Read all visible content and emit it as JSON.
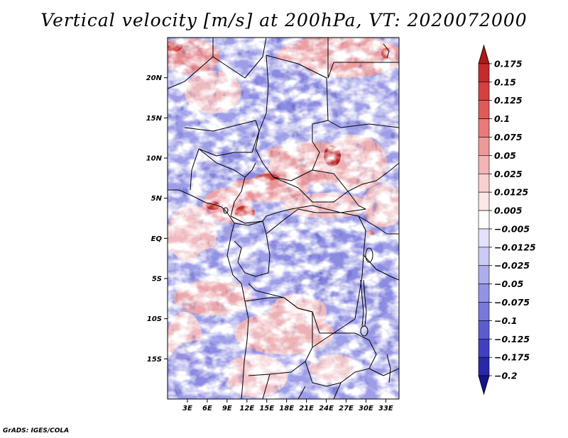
{
  "title": "Vertical velocity [m/s] at 200hPa, VT: 2020072000",
  "footer": "GrADS: IGES/COLA",
  "map": {
    "lat_range": [
      -20,
      25
    ],
    "lon_range": [
      0,
      35
    ],
    "lat_ticks": [
      "20N",
      "15N",
      "10N",
      "5N",
      "EQ",
      "5S",
      "10S",
      "15S"
    ],
    "lon_ticks": [
      "3E",
      "6E",
      "9E",
      "12E",
      "15E",
      "18E",
      "21E",
      "24E",
      "27E",
      "30E",
      "33E"
    ]
  },
  "colorbar": {
    "levels": [
      "0.175",
      "0.15",
      "0.125",
      "0.1",
      "0.075",
      "0.05",
      "0.025",
      "0.0125",
      "0.005",
      "-0.005",
      "-0.0125",
      "-0.025",
      "-0.05",
      "-0.075",
      "-0.1",
      "-0.125",
      "-0.175",
      "-0.2"
    ],
    "colors": [
      "#b01818",
      "#c62a2a",
      "#d54040",
      "#e05a5a",
      "#e87a7a",
      "#ef9898",
      "#f4b4b4",
      "#f9d0d0",
      "#fce6e6",
      "#ffffff",
      "#e2e2fb",
      "#cacaf4",
      "#adadee",
      "#9292e6",
      "#7878dc",
      "#5c5cd0",
      "#4040c0",
      "#2828a8",
      "#14148c"
    ]
  },
  "colors": {
    "upward": "#e05a5a",
    "downward": "#7878dc",
    "neutral": "#ffffff"
  }
}
